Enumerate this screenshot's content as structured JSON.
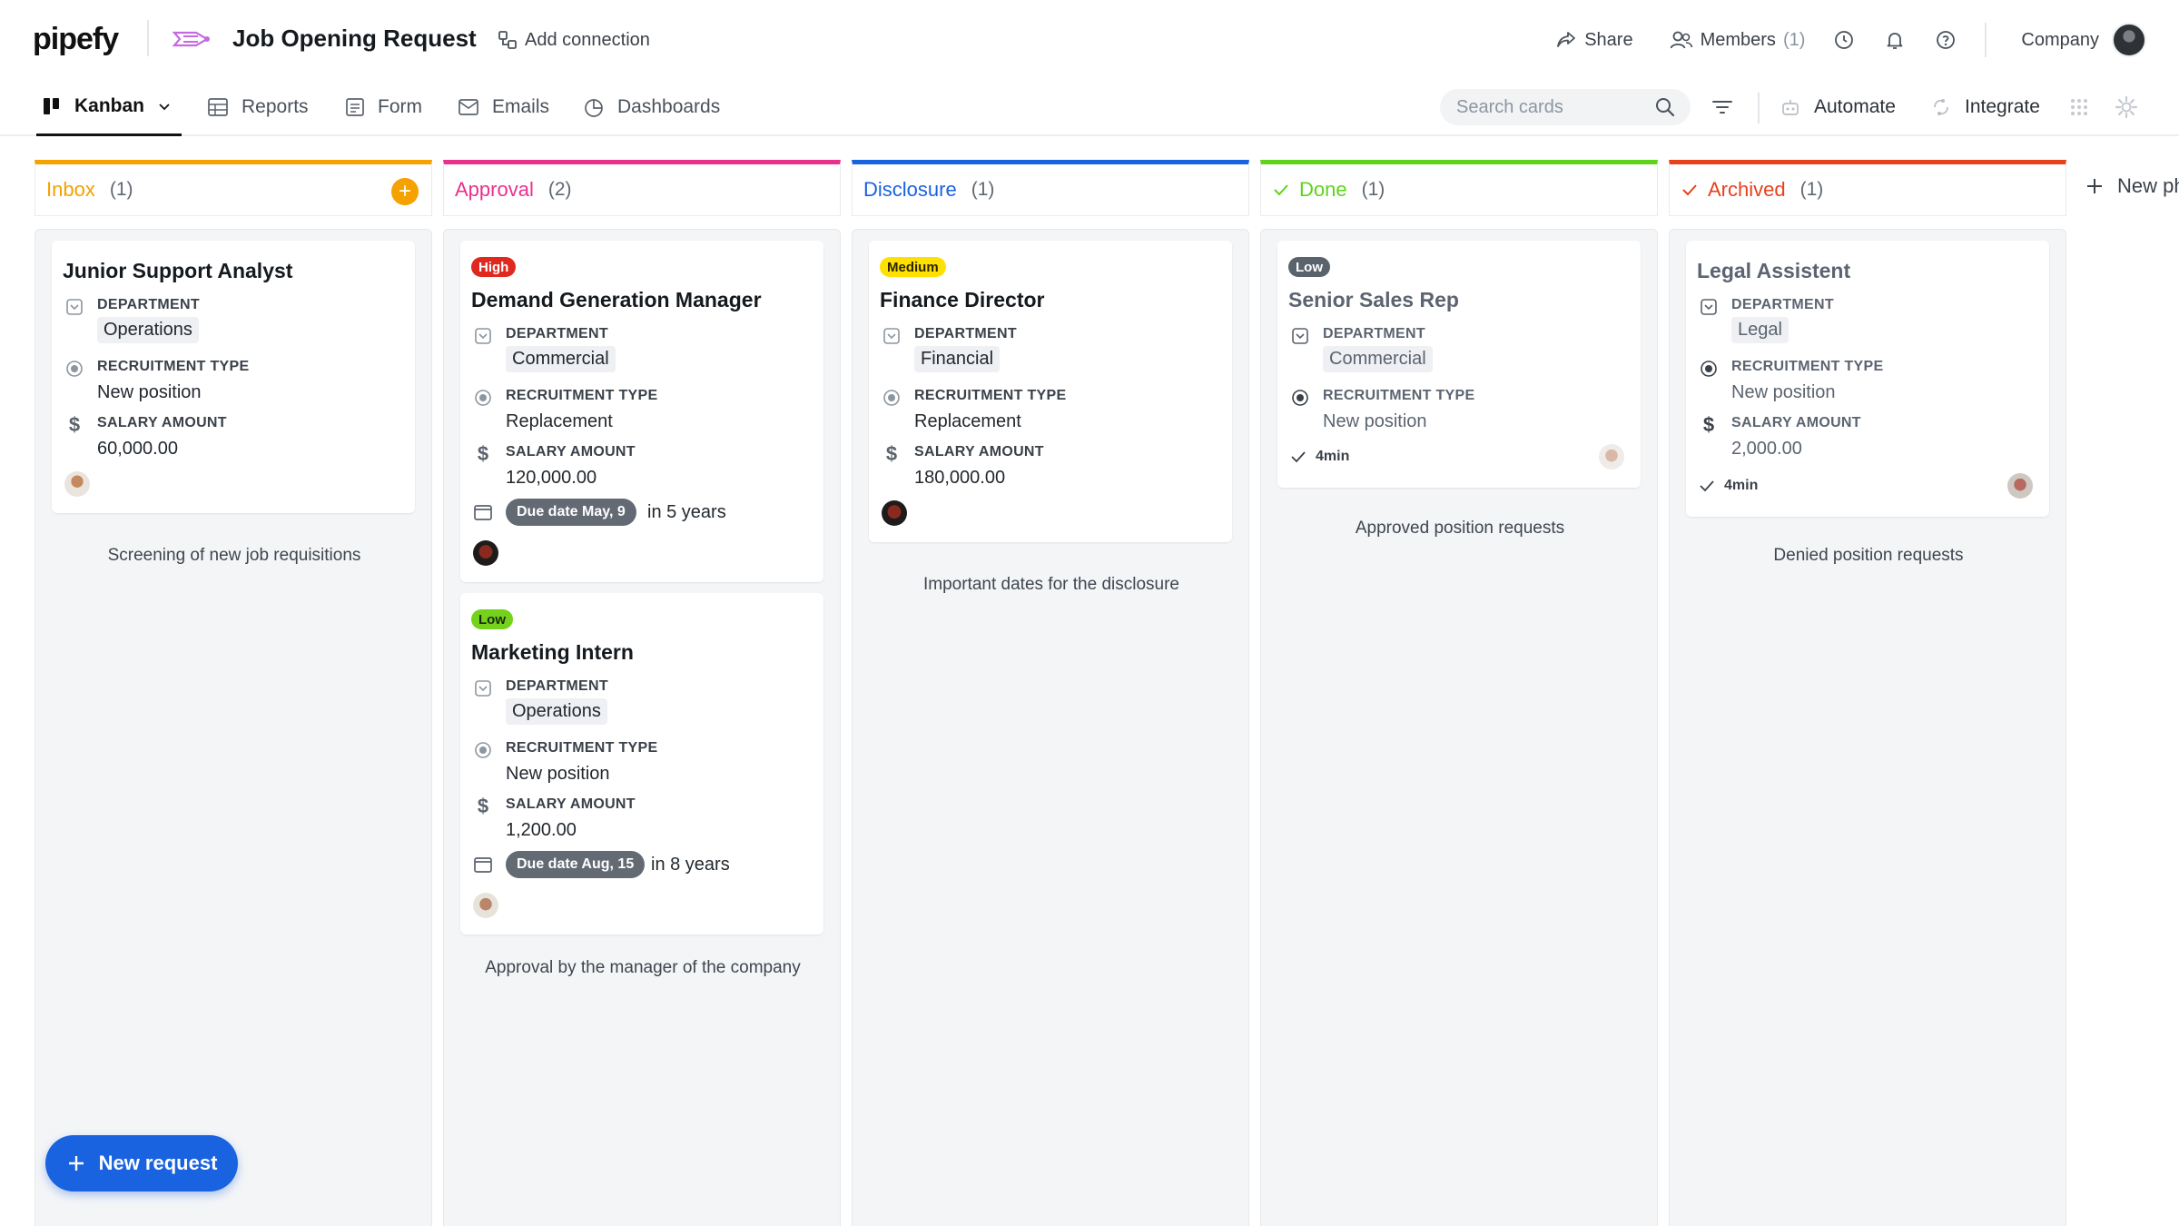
{
  "app": {
    "logo": "pipefy",
    "pipe_title": "Job Opening Request",
    "add_connection": "Add connection",
    "share": "Share",
    "members": "Members",
    "members_count": "(1)",
    "company": "Company"
  },
  "nav": {
    "tabs": [
      {
        "label": "Kanban",
        "icon": "kanban-icon",
        "active": true
      },
      {
        "label": "Reports",
        "icon": "table-icon"
      },
      {
        "label": "Form",
        "icon": "form-icon"
      },
      {
        "label": "Emails",
        "icon": "mail-icon"
      },
      {
        "label": "Dashboards",
        "icon": "chart-icon"
      }
    ],
    "search_placeholder": "Search cards",
    "automate": "Automate",
    "integrate": "Integrate"
  },
  "colors": {
    "inbox": "#f5a100",
    "approval": "#e8318d",
    "disclosure": "#1962e0",
    "done": "#5fd31b",
    "archived": "#e9401c",
    "high": "#e0281f",
    "medium": "#ffe000",
    "low_green": "#74d21c",
    "low_gray": "#5a626c"
  },
  "phases": [
    {
      "name": "Inbox",
      "count": "(1)",
      "description": "Screening of new job requisitions",
      "cards": [
        {
          "title": "Junior Support Analyst",
          "department": "Operations",
          "recruitment_type": "New position",
          "salary": "60,000.00"
        }
      ]
    },
    {
      "name": "Approval",
      "count": "(2)",
      "description": "Approval by the manager of the company",
      "cards": [
        {
          "badge": "High",
          "title": "Demand Generation Manager",
          "department": "Commercial",
          "recruitment_type": "Replacement",
          "salary": "120,000.00",
          "due": "Due date May, 9",
          "due_rel": "in 5 years"
        },
        {
          "badge": "Low",
          "title": "Marketing Intern",
          "department": "Operations",
          "recruitment_type": "New position",
          "salary": "1,200.00",
          "due": "Due date Aug, 15",
          "due_rel": "in 8 years"
        }
      ]
    },
    {
      "name": "Disclosure",
      "count": "(1)",
      "description": "Important dates for the disclosure",
      "cards": [
        {
          "badge": "Medium",
          "title": "Finance Director",
          "department": "Financial",
          "recruitment_type": "Replacement",
          "salary": "180,000.00"
        }
      ]
    },
    {
      "name": "Done",
      "count": "(1)",
      "description": "Approved position requests",
      "cards": [
        {
          "badge": "Low",
          "title": "Senior Sales Rep",
          "department": "Commercial",
          "recruitment_type": "New position",
          "time": "4min"
        }
      ]
    },
    {
      "name": "Archived",
      "count": "(1)",
      "description": "Denied position requests",
      "cards": [
        {
          "title": "Legal Assistent",
          "department": "Legal",
          "recruitment_type": "New position",
          "salary": "2,000.00",
          "time": "4min"
        }
      ]
    }
  ],
  "labels": {
    "department": "DEPARTMENT",
    "recruitment_type": "RECRUITMENT TYPE",
    "salary_amount": "SALARY AMOUNT"
  },
  "new_phase": "New ph",
  "fab": "New request"
}
